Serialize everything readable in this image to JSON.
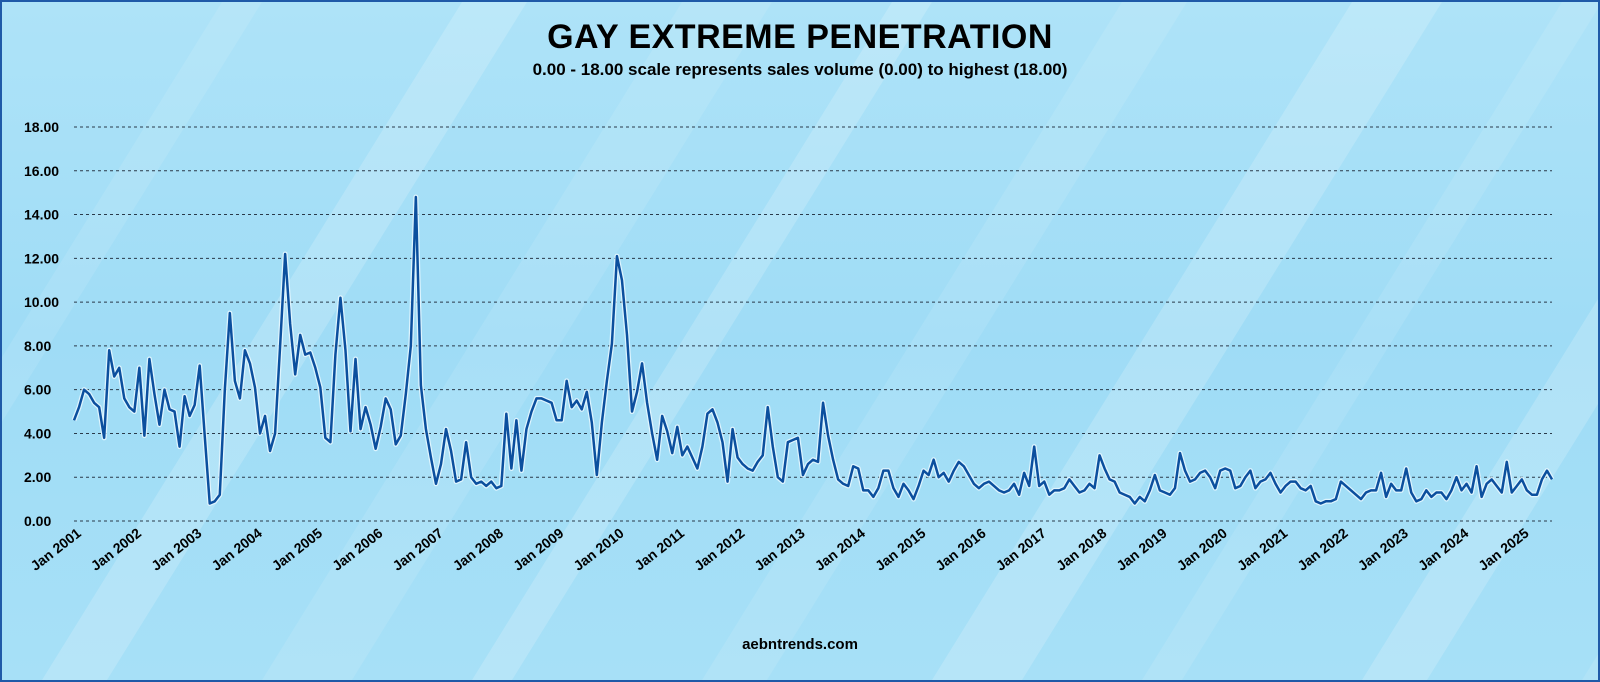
{
  "title": "GAY EXTREME PENETRATION",
  "subtitle": "0.00 - 18.00 scale represents sales volume (0.00) to highest (18.00)",
  "footer": "aebntrends.com",
  "colors": {
    "line": "#0b4f9e",
    "glow": "#e8f8ff",
    "grid": "#2a3a4a",
    "frame": "#1f5aa8"
  },
  "chart_data": {
    "type": "line",
    "title": "GAY EXTREME PENETRATION",
    "subtitle": "0.00 - 18.00 scale represents sales volume (0.00) to highest (18.00)",
    "xlabel": "",
    "ylabel": "",
    "ylim": [
      0,
      18
    ],
    "grid": true,
    "y_ticks": [
      "0.00",
      "2.00",
      "4.00",
      "6.00",
      "8.00",
      "10.00",
      "12.00",
      "14.00",
      "16.00",
      "18.00"
    ],
    "x_ticks": [
      "Jan 2001",
      "Jan 2002",
      "Jan 2003",
      "Jan 2004",
      "Jan 2005",
      "Jan 2006",
      "Jan 2007",
      "Jan 2008",
      "Jan 2009",
      "Jan 2010",
      "Jan 2011",
      "Jan 2012",
      "Jan 2013",
      "Jan 2014",
      "Jan 2015",
      "Jan 2016",
      "Jan 2017",
      "Jan 2018",
      "Jan 2019",
      "Jan 2020",
      "Jan 2021",
      "Jan 2022",
      "Jan 2023",
      "Jan 2024",
      "Jan 2025"
    ],
    "series": [
      {
        "values": [
          4.6,
          5.2,
          6.0,
          5.8,
          5.4,
          5.2,
          3.8,
          7.8,
          6.6,
          7.0,
          5.6,
          5.2,
          5.0,
          7.0,
          3.9,
          7.4,
          5.8,
          4.4,
          6.0,
          5.1,
          5.0,
          3.4,
          5.7,
          4.8,
          5.3,
          7.1,
          3.9,
          0.8,
          0.9,
          1.2,
          6.0,
          9.5,
          6.4,
          5.6,
          7.8,
          7.2,
          6.1,
          4.0,
          4.8,
          3.2,
          4.0,
          8.0,
          12.2,
          9.0,
          6.7,
          8.5,
          7.6,
          7.7,
          7.0,
          6.1,
          3.8,
          3.6,
          7.6,
          10.2,
          7.8,
          4.1,
          7.4,
          4.2,
          5.2,
          4.4,
          3.3,
          4.3,
          5.6,
          5.1,
          3.5,
          3.9,
          5.8,
          8.0,
          14.8,
          6.2,
          4.2,
          2.9,
          1.7,
          2.6,
          4.2,
          3.2,
          1.8,
          1.9,
          3.6,
          2.0,
          1.7,
          1.8,
          1.6,
          1.8,
          1.5,
          1.6,
          4.9,
          2.4,
          4.6,
          2.3,
          4.2,
          5.0,
          5.6,
          5.6,
          5.5,
          5.4,
          4.6,
          4.6,
          6.4,
          5.2,
          5.5,
          5.1,
          5.9,
          4.5,
          2.1,
          4.5,
          6.4,
          8.1,
          12.1,
          11.0,
          8.5,
          5.0,
          5.9,
          7.2,
          5.4,
          4.0,
          2.8,
          4.8,
          4.1,
          3.1,
          4.3,
          3.0,
          3.4,
          2.9,
          2.4,
          3.4,
          4.9,
          5.1,
          4.5,
          3.6,
          1.8,
          4.2,
          2.9,
          2.6,
          2.4,
          2.3,
          2.7,
          3.0,
          5.2,
          3.4,
          2.0,
          1.8,
          3.6,
          3.7,
          3.8,
          2.1,
          2.6,
          2.8,
          2.7,
          5.4,
          3.9,
          2.8,
          1.9,
          1.7,
          1.6,
          2.5,
          2.4,
          1.4,
          1.4,
          1.1,
          1.5,
          2.3,
          2.3,
          1.5,
          1.1,
          1.7,
          1.4,
          1.0,
          1.6,
          2.3,
          2.1,
          2.8,
          2.0,
          2.2,
          1.8,
          2.3,
          2.7,
          2.5,
          2.1,
          1.7,
          1.5,
          1.7,
          1.8,
          1.6,
          1.4,
          1.3,
          1.4,
          1.7,
          1.2,
          2.2,
          1.6,
          3.4,
          1.6,
          1.8,
          1.2,
          1.4,
          1.4,
          1.5,
          1.9,
          1.6,
          1.3,
          1.4,
          1.7,
          1.5,
          3.0,
          2.4,
          1.9,
          1.8,
          1.3,
          1.2,
          1.1,
          0.8,
          1.1,
          0.9,
          1.4,
          2.1,
          1.4,
          1.3,
          1.2,
          1.5,
          3.1,
          2.3,
          1.8,
          1.9,
          2.2,
          2.3,
          2.0,
          1.5,
          2.3,
          2.4,
          2.3,
          1.5,
          1.6,
          2.0,
          2.3,
          1.5,
          1.8,
          1.9,
          2.2,
          1.7,
          1.3,
          1.6,
          1.8,
          1.8,
          1.5,
          1.4,
          1.6,
          0.9,
          0.8,
          0.9,
          0.9,
          1.0,
          1.8,
          1.6,
          1.4,
          1.2,
          1.0,
          1.3,
          1.4,
          1.4,
          2.2,
          1.1,
          1.7,
          1.4,
          1.4,
          2.4,
          1.3,
          0.9,
          1.0,
          1.4,
          1.1,
          1.3,
          1.3,
          1.0,
          1.4,
          2.0,
          1.4,
          1.7,
          1.3,
          2.5,
          1.1,
          1.7,
          1.9,
          1.6,
          1.3,
          2.7,
          1.3,
          1.6,
          1.9,
          1.4,
          1.2,
          1.2,
          1.9,
          2.3,
          1.9
        ]
      }
    ]
  }
}
